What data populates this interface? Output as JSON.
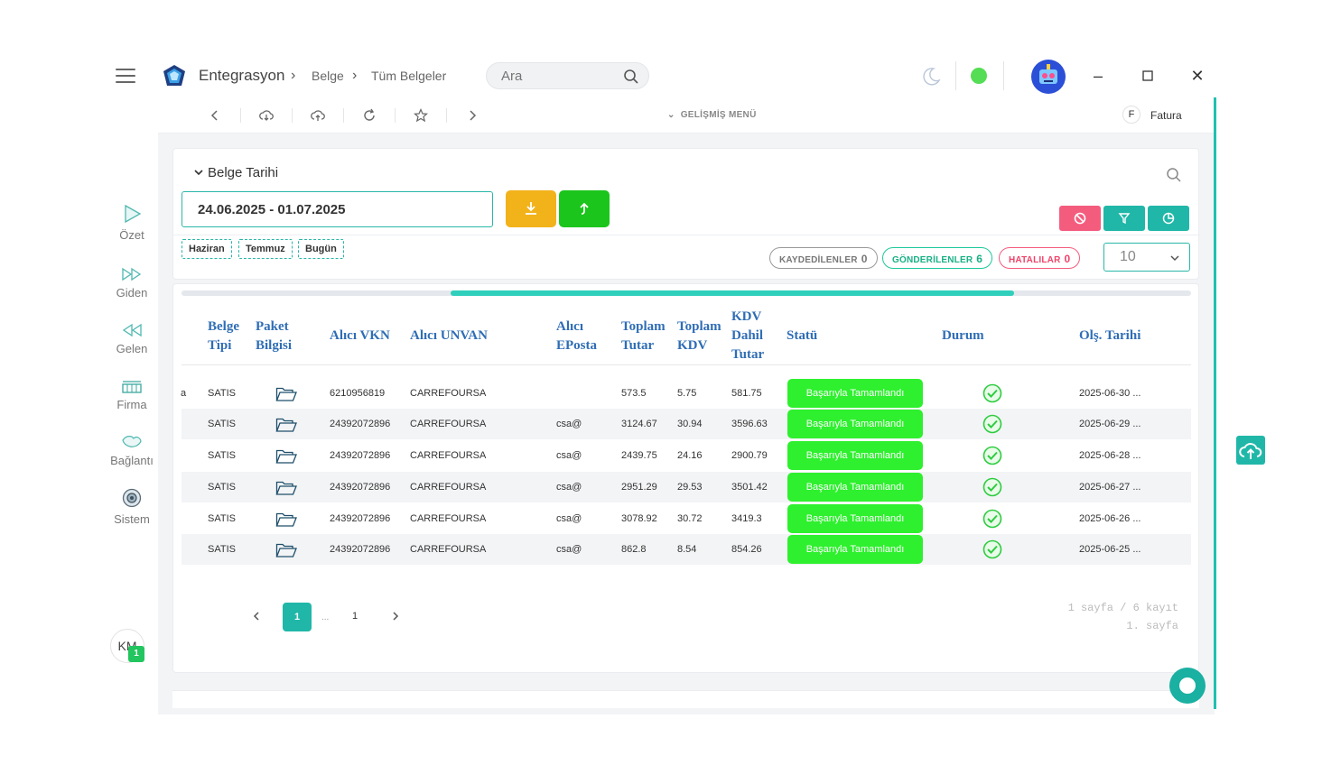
{
  "app": {
    "title": "Entegrasyon",
    "breadcrumb": [
      "Belge",
      "Tüm Belgeler"
    ],
    "search_placeholder": "Ara"
  },
  "colors": {
    "accent": "#20b7a8",
    "status_ok": "#2ef02e",
    "header_text": "#2f6db5",
    "warn_yellow": "#f2b21a",
    "green_button": "#1bc51b"
  },
  "sidebar": {
    "items": [
      {
        "label": "Özet",
        "icon": "play-triangle-icon"
      },
      {
        "label": "Giden",
        "icon": "double-forward-icon"
      },
      {
        "label": "Gelen",
        "icon": "double-rewind-icon"
      },
      {
        "label": "Firma",
        "icon": "factory-icon"
      },
      {
        "label": "Bağlantı",
        "icon": "handshake-icon"
      },
      {
        "label": "Sistem",
        "icon": "gear-circle-icon"
      }
    ],
    "user_initials": "KM",
    "user_badge": "1"
  },
  "toolbar": {
    "advanced_menu": "GELİŞMİŞ MENÜ",
    "type_badge": "F",
    "type_label": "Fatura"
  },
  "filter": {
    "section_title": "Belge Tarihi",
    "date_range": "24.06.2025 - 01.07.2025",
    "chips": [
      "Haziran",
      "Temmuz",
      "Bugün"
    ],
    "pills": [
      {
        "label": "KAYDEDİLENLER",
        "count": "0"
      },
      {
        "label": "GÖNDERİLENLER",
        "count": "6"
      },
      {
        "label": "HATALILAR",
        "count": "0"
      }
    ],
    "page_size": "10"
  },
  "table": {
    "headers": {
      "belge_tipi": [
        "Belge",
        "Tipi"
      ],
      "paket": [
        "Paket",
        "Bilgisi"
      ],
      "alici_vkn": "Alıcı VKN",
      "alici_unvan": "Alıcı UNVAN",
      "alici_eposta": [
        "Alıcı",
        "EPosta"
      ],
      "toplam_tutar": [
        "Toplam",
        "Tutar"
      ],
      "toplam_kdv": [
        "Toplam",
        "KDV"
      ],
      "kdv_dahil": [
        "KDV",
        "Dahil",
        "Tutar"
      ],
      "statu": "Statü",
      "durum": "Durum",
      "olus_tarihi": "Olş. Tarihi"
    },
    "first_col_fragment": "a",
    "rows": [
      {
        "tip": "SATIS",
        "vkn": "6210956819",
        "unvan": "CARREFOURSA",
        "eposta": "",
        "tutar": "573.5",
        "kdv": "5.75",
        "dahil": "581.75",
        "statu": "Başarıyla Tamamlandı",
        "tarih": "2025-06-30 ..."
      },
      {
        "tip": "SATIS",
        "vkn": "24392072896",
        "unvan": "CARREFOURSA",
        "eposta": "csa@",
        "tutar": "3124.67",
        "kdv": "30.94",
        "dahil": "3596.63",
        "statu": "Başarıyla Tamamlandı",
        "tarih": "2025-06-29 ..."
      },
      {
        "tip": "SATIS",
        "vkn": "24392072896",
        "unvan": "CARREFOURSA",
        "eposta": "csa@",
        "tutar": "2439.75",
        "kdv": "24.16",
        "dahil": "2900.79",
        "statu": "Başarıyla Tamamlandı",
        "tarih": "2025-06-28 ..."
      },
      {
        "tip": "SATIS",
        "vkn": "24392072896",
        "unvan": "CARREFOURSA",
        "eposta": "csa@",
        "tutar": "2951.29",
        "kdv": "29.53",
        "dahil": "3501.42",
        "statu": "Başarıyla Tamamlandı",
        "tarih": "2025-06-27 ..."
      },
      {
        "tip": "SATIS",
        "vkn": "24392072896",
        "unvan": "CARREFOURSA",
        "eposta": "csa@",
        "tutar": "3078.92",
        "kdv": "30.72",
        "dahil": "3419.3",
        "statu": "Başarıyla Tamamlandı",
        "tarih": "2025-06-26 ..."
      },
      {
        "tip": "SATIS",
        "vkn": "24392072896",
        "unvan": "CARREFOURSA",
        "eposta": "csa@",
        "tutar": "862.8",
        "kdv": "8.54",
        "dahil": "854.26",
        "statu": "Başarıyla Tamamlandı",
        "tarih": "2025-06-25 ..."
      }
    ]
  },
  "pagination": {
    "current": "1",
    "dots": "...",
    "last": "1",
    "info_line1": "1 sayfa / 6 kayıt",
    "info_line2": "1. sayfa"
  }
}
